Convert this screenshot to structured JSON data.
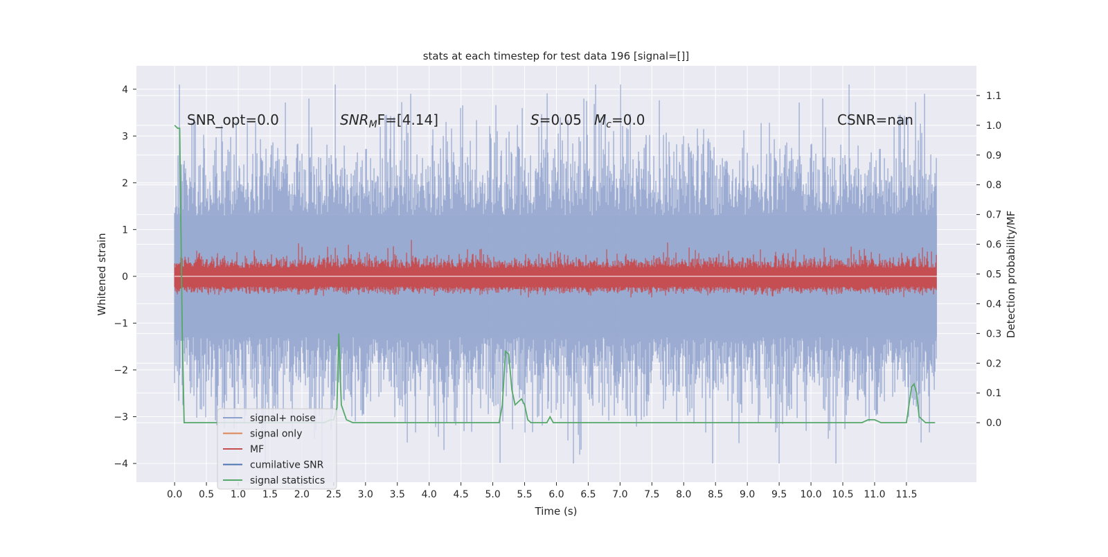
{
  "chart_data": {
    "type": "line",
    "title": "stats at each timestep for test data 196 [signal=[]]",
    "xlabel": "Time (s)",
    "ylabel_left": "Whitened strain",
    "ylabel_right": "Detection probability/MF",
    "xlim": [
      -0.6,
      12.6
    ],
    "ylim_left": [
      -4.4,
      4.5
    ],
    "ylim_right": [
      -0.2,
      1.2
    ],
    "x_ticks": [
      0.0,
      0.5,
      1.0,
      1.5,
      2.0,
      2.5,
      3.0,
      3.5,
      4.0,
      4.5,
      5.0,
      5.5,
      6.0,
      6.5,
      7.0,
      7.5,
      8.0,
      8.5,
      9.0,
      9.5,
      10.0,
      10.5,
      11.0,
      11.5
    ],
    "x_tick_labels": [
      "0.0",
      "0.5",
      "1.0",
      "1.5",
      "2.0",
      "2.5",
      "3.0",
      "3.5",
      "4.0",
      "4.5",
      "5.0",
      "5.5",
      "6.0",
      "6.5",
      "7.0",
      "7.5",
      "8.0",
      "8.5",
      "9.0",
      "9.5",
      "10.0",
      "10.5",
      "11.0",
      "11.5"
    ],
    "y_left_ticks": [
      -4,
      -3,
      -2,
      -1,
      0,
      1,
      2,
      3,
      4
    ],
    "y_left_tick_labels": [
      "−4",
      "−3",
      "−2",
      "−1",
      "0",
      "1",
      "2",
      "3",
      "4"
    ],
    "y_right_ticks": [
      0.0,
      0.1,
      0.2,
      0.3,
      0.4,
      0.5,
      0.6,
      0.7,
      0.8,
      0.9,
      1.0,
      1.1
    ],
    "y_right_tick_labels": [
      "0.0",
      "0.1",
      "0.2",
      "0.3",
      "0.4",
      "0.5",
      "0.6",
      "0.7",
      "0.8",
      "0.9",
      "1.0",
      "1.1"
    ],
    "grid": true,
    "legend_position": "lower-left",
    "legend": [
      {
        "label": "signal+ noise",
        "color": "#8da0cb"
      },
      {
        "label": "signal only",
        "color": "#dd8452"
      },
      {
        "label": "MF",
        "color": "#c44e52"
      },
      {
        "label": "cumilative SNR",
        "color": "#4c72b0"
      },
      {
        "label": "signal statistics",
        "color": "#55a868"
      }
    ],
    "annotations": {
      "snr_opt": "SNR_opt=0.0",
      "snr_mf_prefix": "SNR",
      "snr_mf_sub": "M",
      "snr_mf_suffix": "F=[4.14]",
      "s_prefix": "S",
      "s_value": "=0.05",
      "mc_prefix": "M",
      "mc_sub": "c",
      "mc_value": "=0.0",
      "csnr": "CSNR=nan"
    },
    "background_color": "#eaeaf2",
    "noise_envelope": {
      "x_range": [
        0.0,
        11.98
      ],
      "approx_upper": 2.0,
      "approx_lower": -2.0,
      "peak_max": 4.1,
      "peak_min": -4.0
    },
    "mf_envelope": {
      "x_range": [
        0.0,
        11.98
      ],
      "approx_upper": 0.5,
      "approx_lower": -0.4
    },
    "signal_statistics": {
      "x": [
        0.0,
        0.05,
        0.08,
        0.12,
        0.15,
        0.2,
        0.3,
        0.5,
        1.0,
        1.5,
        2.0,
        2.35,
        2.45,
        2.5,
        2.55,
        2.58,
        2.62,
        2.7,
        2.8,
        3.0,
        4.0,
        5.0,
        5.1,
        5.15,
        5.2,
        5.25,
        5.3,
        5.35,
        5.4,
        5.45,
        5.5,
        5.55,
        5.6,
        5.7,
        5.85,
        5.9,
        5.95,
        6.5,
        7.0,
        8.0,
        9.0,
        10.0,
        10.8,
        10.9,
        11.0,
        11.1,
        11.3,
        11.5,
        11.58,
        11.62,
        11.66,
        11.7,
        11.8,
        11.95
      ],
      "y": [
        1.0,
        0.99,
        0.99,
        0.3,
        0.0,
        0.0,
        0.0,
        0.0,
        0.0,
        0.0,
        0.0,
        0.0,
        0.01,
        0.01,
        0.05,
        0.3,
        0.06,
        0.01,
        0.0,
        0.0,
        0.0,
        0.0,
        0.0,
        0.06,
        0.24,
        0.23,
        0.11,
        0.06,
        0.07,
        0.08,
        0.06,
        0.01,
        0.0,
        0.0,
        0.0,
        0.02,
        0.0,
        0.0,
        0.0,
        0.0,
        0.0,
        0.0,
        0.0,
        0.01,
        0.01,
        0.0,
        0.0,
        0.0,
        0.12,
        0.13,
        0.1,
        0.02,
        0.0,
        0.0
      ]
    }
  }
}
